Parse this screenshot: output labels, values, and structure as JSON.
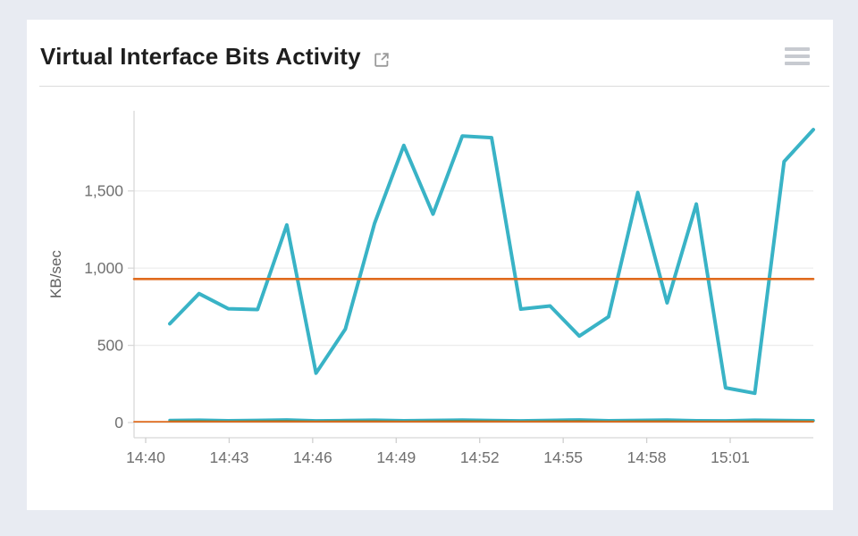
{
  "card": {
    "title": "Virtual Interface Bits Activity",
    "external_link_icon": "external-link",
    "menu_icon": "menu"
  },
  "chart_data": {
    "type": "line",
    "title": "Virtual Interface Bits Activity",
    "xlabel": "",
    "ylabel": "KB/sec",
    "ylim": [
      0,
      2000
    ],
    "yticks": [
      0,
      500,
      1000,
      1500
    ],
    "ytick_labels": [
      "0",
      "500",
      "1,000",
      "1,500"
    ],
    "xtick_labels": [
      "14:40",
      "14:43",
      "14:46",
      "14:49",
      "14:52",
      "14:55",
      "14:58",
      "15:01"
    ],
    "x": [
      "14:41",
      "14:42",
      "14:43",
      "14:44",
      "14:45",
      "14:46",
      "14:47",
      "14:48",
      "14:49",
      "14:50",
      "14:51",
      "14:52",
      "14:53",
      "14:54",
      "14:55",
      "14:56",
      "14:57",
      "14:58",
      "14:59",
      "15:00",
      "15:01",
      "15:02",
      "15:03"
    ],
    "grid": "horizontal",
    "legend": "none",
    "series": [
      {
        "name": "teal-traffic-line",
        "color": "#39b3c6",
        "from_left_edge": false,
        "values": [
          640,
          835,
          737,
          732,
          1280,
          320,
          605,
          1290,
          1795,
          1350,
          1856,
          1845,
          735,
          755,
          560,
          685,
          1490,
          775,
          1415,
          225,
          190,
          1690,
          1897
        ]
      },
      {
        "name": "orange-flat-line",
        "color": "#e06b1e",
        "from_left_edge": true,
        "values": [
          930,
          930,
          930,
          930,
          930,
          930,
          930,
          930,
          930,
          930,
          930,
          930,
          930,
          930,
          930,
          930,
          930,
          930,
          930,
          930,
          930,
          930,
          930
        ]
      },
      {
        "name": "near-zero-teal-line",
        "color": "#39b3c6",
        "from_left_edge": false,
        "values": [
          14,
          16,
          13,
          15,
          18,
          12,
          14,
          16,
          13,
          15,
          17,
          14,
          12,
          15,
          18,
          13,
          15,
          17,
          13,
          12,
          16,
          14,
          13
        ]
      },
      {
        "name": "near-zero-green-line",
        "color": "#6e7d2f",
        "from_left_edge": false,
        "values": [
          9,
          9,
          8,
          9,
          10,
          8,
          9,
          9,
          8,
          9,
          10,
          9,
          8,
          9,
          10,
          8,
          9,
          9,
          8,
          8,
          9,
          9,
          8
        ]
      },
      {
        "name": "near-zero-orange-line",
        "color": "#e06b1e",
        "from_left_edge": true,
        "values": [
          5,
          5,
          5,
          5,
          5,
          5,
          5,
          5,
          5,
          5,
          5,
          5,
          5,
          5,
          5,
          5,
          5,
          5,
          5,
          5,
          5,
          5,
          5
        ]
      }
    ]
  }
}
